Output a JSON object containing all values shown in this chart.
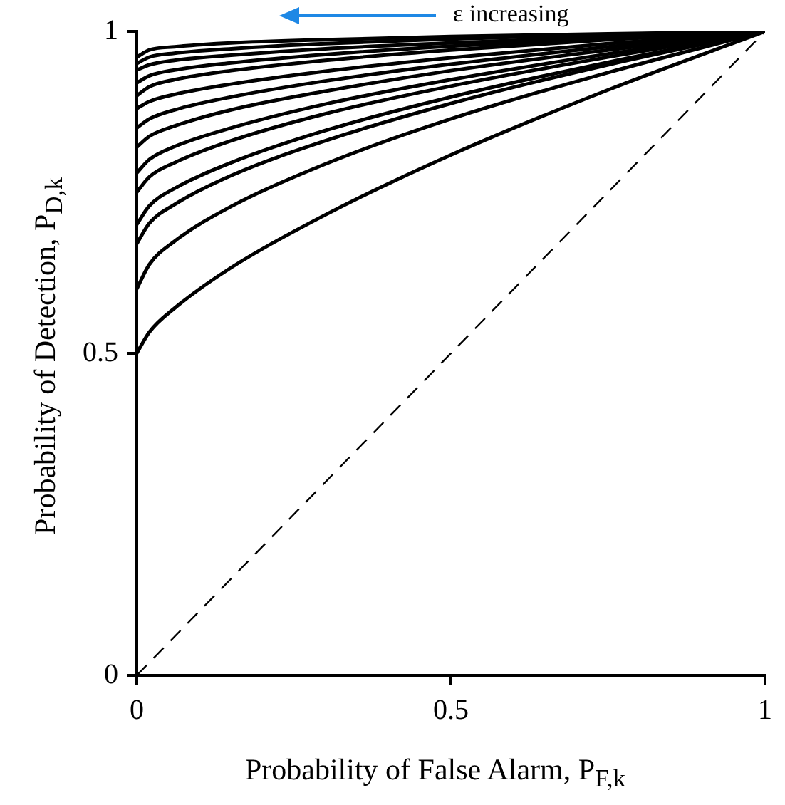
{
  "chart_data": {
    "type": "line",
    "xlabel": "Probability of False Alarm, P$_{F,k}$",
    "ylabel": "Probability of Detection, P$_{D,k}$",
    "annotations": [
      "ε increasing"
    ],
    "x": [
      0,
      0.02,
      0.06,
      0.15,
      0.3,
      0.5,
      0.75,
      1
    ],
    "xlim": [
      0,
      1
    ],
    "xticks": [
      0,
      0.5,
      1
    ],
    "ylim": [
      0,
      1
    ],
    "yticks": [
      0,
      0.5,
      1
    ],
    "grid": false,
    "legend": false,
    "marker": "none",
    "line_style": "solid",
    "series": [
      {
        "color": "#000000",
        "values": [
          0.5,
          0.533,
          0.57,
          0.633,
          0.715,
          0.808,
          0.909,
          1
        ]
      },
      {
        "color": "#000000",
        "values": [
          0.6,
          0.638,
          0.674,
          0.728,
          0.794,
          0.864,
          0.936,
          1
        ]
      },
      {
        "color": "#000000",
        "values": [
          0.67,
          0.702,
          0.731,
          0.776,
          0.83,
          0.888,
          0.948,
          1
        ]
      },
      {
        "color": "#000000",
        "values": [
          0.7,
          0.729,
          0.756,
          0.796,
          0.846,
          0.898,
          0.952,
          1
        ]
      },
      {
        "color": "#000000",
        "values": [
          0.75,
          0.774,
          0.796,
          0.83,
          0.872,
          0.915,
          0.96,
          1
        ]
      },
      {
        "color": "#000000",
        "values": [
          0.78,
          0.801,
          0.821,
          0.85,
          0.887,
          0.925,
          0.965,
          1
        ]
      },
      {
        "color": "#000000",
        "values": [
          0.82,
          0.837,
          0.853,
          0.878,
          0.907,
          0.939,
          0.971,
          1
        ]
      },
      {
        "color": "#000000",
        "values": [
          0.85,
          0.864,
          0.878,
          0.898,
          0.923,
          0.949,
          0.976,
          1
        ]
      },
      {
        "color": "#000000",
        "values": [
          0.88,
          0.891,
          0.902,
          0.918,
          0.938,
          0.959,
          0.981,
          1
        ]
      },
      {
        "color": "#000000",
        "values": [
          0.9,
          0.914,
          0.925,
          0.939,
          0.955,
          0.971,
          0.987,
          1
        ]
      },
      {
        "color": "#000000",
        "values": [
          0.92,
          0.931,
          0.94,
          0.951,
          0.964,
          0.977,
          0.989,
          1
        ]
      },
      {
        "color": "#000000",
        "values": [
          0.94,
          0.948,
          0.955,
          0.963,
          0.973,
          0.982,
          0.992,
          1
        ]
      },
      {
        "color": "#000000",
        "values": [
          0.95,
          0.96,
          0.966,
          0.973,
          0.981,
          0.988,
          0.995,
          1
        ]
      },
      {
        "color": "#000000",
        "values": [
          0.96,
          0.971,
          0.976,
          0.982,
          0.987,
          0.992,
          0.996,
          1
        ]
      },
      {
        "color": "#000000",
        "x": [
          0,
          1
        ],
        "values": [
          0,
          1
        ],
        "line_style": "dashed"
      }
    ]
  }
}
